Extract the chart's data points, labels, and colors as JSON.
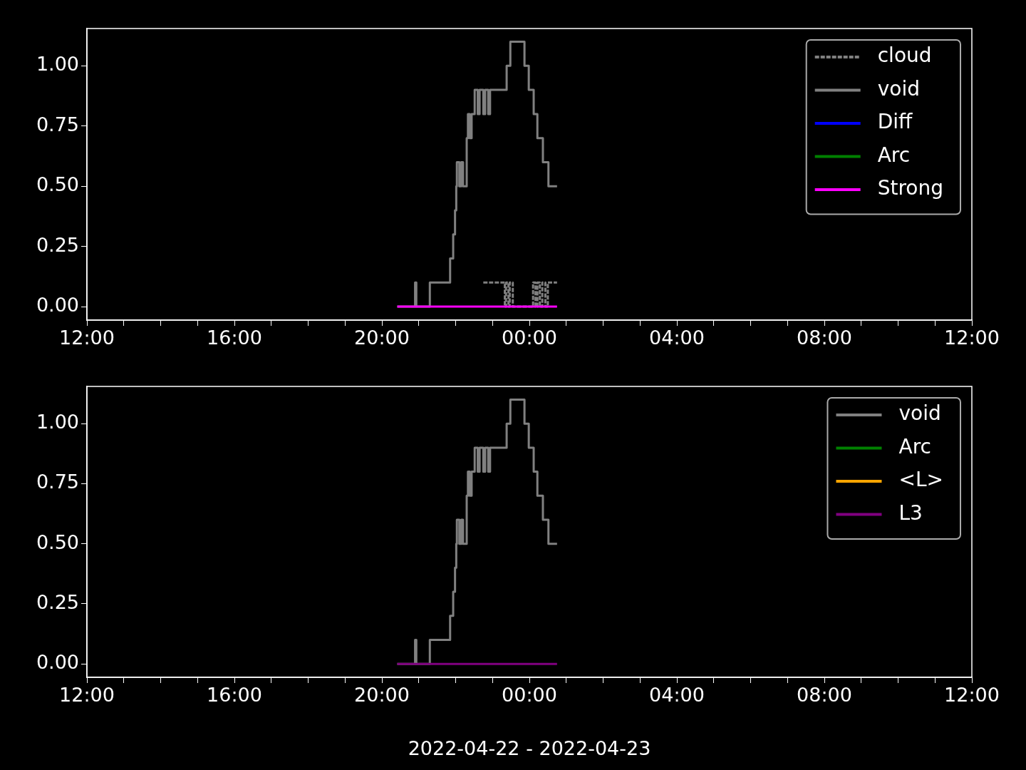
{
  "chart_data": [
    {
      "type": "step",
      "legend": "top right",
      "xlim": [
        "2022-04-22T12:00",
        "2022-04-23T12:00"
      ],
      "xticks": [
        {
          "value": "2022-04-22T12:00",
          "label": "12:00"
        },
        {
          "value": "2022-04-22T13:00",
          "label": null
        },
        {
          "value": "2022-04-22T14:00",
          "label": null
        },
        {
          "value": "2022-04-22T15:00",
          "label": null
        },
        {
          "value": "2022-04-22T16:00",
          "label": "16:00"
        },
        {
          "value": "2022-04-22T17:00",
          "label": null
        },
        {
          "value": "2022-04-22T18:00",
          "label": null
        },
        {
          "value": "2022-04-22T19:00",
          "label": null
        },
        {
          "value": "2022-04-22T20:00",
          "label": "20:00"
        },
        {
          "value": "2022-04-22T21:00",
          "label": null
        },
        {
          "value": "2022-04-22T22:00",
          "label": null
        },
        {
          "value": "2022-04-22T23:00",
          "label": null
        },
        {
          "value": "2022-04-23T00:00",
          "label": "00:00"
        },
        {
          "value": "2022-04-23T01:00",
          "label": null
        },
        {
          "value": "2022-04-23T02:00",
          "label": null
        },
        {
          "value": "2022-04-23T03:00",
          "label": null
        },
        {
          "value": "2022-04-23T04:00",
          "label": "04:00"
        },
        {
          "value": "2022-04-23T05:00",
          "label": null
        },
        {
          "value": "2022-04-23T06:00",
          "label": null
        },
        {
          "value": "2022-04-23T07:00",
          "label": null
        },
        {
          "value": "2022-04-23T08:00",
          "label": "08:00"
        },
        {
          "value": "2022-04-23T09:00",
          "label": null
        },
        {
          "value": "2022-04-23T10:00",
          "label": null
        },
        {
          "value": "2022-04-23T11:00",
          "label": null
        },
        {
          "value": "2022-04-23T12:00",
          "label": "12:00"
        }
      ],
      "ylim": [
        -0.056,
        1.155
      ],
      "yticks": [
        {
          "value": 0,
          "label": "0.00"
        },
        {
          "value": 0.25,
          "label": "0.25"
        },
        {
          "value": 0.5,
          "label": "0.50"
        },
        {
          "value": 0.75,
          "label": "0.75"
        },
        {
          "value": 1,
          "label": "1.00"
        }
      ],
      "series": [
        {
          "name": "cloud",
          "color": "#808080",
          "line_style": "dashed",
          "x": [
            "2022-04-22T22:45",
            "2022-04-22T23:20",
            "2022-04-22T23:22",
            "2022-04-22T23:26",
            "2022-04-22T23:28",
            "2022-04-22T23:33",
            "2022-04-23T00:06",
            "2022-04-23T00:10",
            "2022-04-23T00:13",
            "2022-04-23T00:17",
            "2022-04-23T00:21",
            "2022-04-23T00:26",
            "2022-04-23T00:30",
            "2022-04-23T00:45"
          ],
          "values": [
            0.1,
            0,
            0.1,
            0,
            0.1,
            0,
            0.1,
            0,
            0.1,
            0,
            0.1,
            0,
            0.1,
            0.1
          ]
        },
        {
          "name": "void",
          "color": "#808080",
          "x": [
            "2022-04-22T20:25",
            "2022-04-22T20:54",
            "2022-04-22T20:56",
            "2022-04-22T21:18",
            "2022-04-22T21:51",
            "2022-04-22T21:56",
            "2022-04-22T21:59",
            "2022-04-22T22:01",
            "2022-04-22T22:02",
            "2022-04-22T22:06",
            "2022-04-22T22:09",
            "2022-04-22T22:12",
            "2022-04-22T22:18",
            "2022-04-22T22:20",
            "2022-04-22T22:23",
            "2022-04-22T22:26",
            "2022-04-22T22:31",
            "2022-04-22T22:36",
            "2022-04-22T22:39",
            "2022-04-22T22:45",
            "2022-04-22T22:48",
            "2022-04-22T22:53",
            "2022-04-22T22:56",
            "2022-04-22T23:23",
            "2022-04-22T23:29",
            "2022-04-22T23:52",
            "2022-04-22T23:59",
            "2022-04-23T00:07",
            "2022-04-23T00:13",
            "2022-04-23T00:22",
            "2022-04-23T00:31",
            "2022-04-23T00:45"
          ],
          "values": [
            0,
            0.1,
            0,
            0.1,
            0.2,
            0.3,
            0.4,
            0.5,
            0.6,
            0.5,
            0.6,
            0.5,
            0.7,
            0.8,
            0.7,
            0.8,
            0.9,
            0.8,
            0.9,
            0.8,
            0.9,
            0.8,
            0.9,
            1.0,
            1.1,
            1.0,
            0.9,
            0.8,
            0.7,
            0.6,
            0.5,
            0.5
          ]
        },
        {
          "name": "Diff",
          "color": "#0000ff"
        },
        {
          "name": "Arc",
          "color": "#008000"
        },
        {
          "name": "Strong",
          "color": "#ff00ff",
          "x": [
            "2022-04-22T20:25",
            "2022-04-23T00:45"
          ],
          "values": [
            0,
            0
          ]
        }
      ]
    },
    {
      "type": "step",
      "legend": "top right",
      "xlabel": "2022-04-22 - 2022-04-23",
      "xlim": [
        "2022-04-22T12:00",
        "2022-04-23T12:00"
      ],
      "xticks": [
        {
          "value": "2022-04-22T12:00",
          "label": "12:00"
        },
        {
          "value": "2022-04-22T13:00",
          "label": null
        },
        {
          "value": "2022-04-22T14:00",
          "label": null
        },
        {
          "value": "2022-04-22T15:00",
          "label": null
        },
        {
          "value": "2022-04-22T16:00",
          "label": "16:00"
        },
        {
          "value": "2022-04-22T17:00",
          "label": null
        },
        {
          "value": "2022-04-22T18:00",
          "label": null
        },
        {
          "value": "2022-04-22T19:00",
          "label": null
        },
        {
          "value": "2022-04-22T20:00",
          "label": "20:00"
        },
        {
          "value": "2022-04-22T21:00",
          "label": null
        },
        {
          "value": "2022-04-22T22:00",
          "label": null
        },
        {
          "value": "2022-04-22T23:00",
          "label": null
        },
        {
          "value": "2022-04-23T00:00",
          "label": "00:00"
        },
        {
          "value": "2022-04-23T01:00",
          "label": null
        },
        {
          "value": "2022-04-23T02:00",
          "label": null
        },
        {
          "value": "2022-04-23T03:00",
          "label": null
        },
        {
          "value": "2022-04-23T04:00",
          "label": "04:00"
        },
        {
          "value": "2022-04-23T05:00",
          "label": null
        },
        {
          "value": "2022-04-23T06:00",
          "label": null
        },
        {
          "value": "2022-04-23T07:00",
          "label": null
        },
        {
          "value": "2022-04-23T08:00",
          "label": "08:00"
        },
        {
          "value": "2022-04-23T09:00",
          "label": null
        },
        {
          "value": "2022-04-23T10:00",
          "label": null
        },
        {
          "value": "2022-04-23T11:00",
          "label": null
        },
        {
          "value": "2022-04-23T12:00",
          "label": "12:00"
        }
      ],
      "ylim": [
        -0.056,
        1.155
      ],
      "yticks": [
        {
          "value": 0,
          "label": "0.00"
        },
        {
          "value": 0.25,
          "label": "0.25"
        },
        {
          "value": 0.5,
          "label": "0.50"
        },
        {
          "value": 0.75,
          "label": "0.75"
        },
        {
          "value": 1,
          "label": "1.00"
        }
      ],
      "series": [
        {
          "name": "void",
          "color": "#808080",
          "x": [
            "2022-04-22T20:25",
            "2022-04-22T20:54",
            "2022-04-22T20:56",
            "2022-04-22T21:18",
            "2022-04-22T21:51",
            "2022-04-22T21:56",
            "2022-04-22T21:59",
            "2022-04-22T22:01",
            "2022-04-22T22:02",
            "2022-04-22T22:06",
            "2022-04-22T22:09",
            "2022-04-22T22:12",
            "2022-04-22T22:18",
            "2022-04-22T22:20",
            "2022-04-22T22:23",
            "2022-04-22T22:26",
            "2022-04-22T22:31",
            "2022-04-22T22:36",
            "2022-04-22T22:39",
            "2022-04-22T22:45",
            "2022-04-22T22:48",
            "2022-04-22T22:53",
            "2022-04-22T22:56",
            "2022-04-22T23:23",
            "2022-04-22T23:29",
            "2022-04-22T23:52",
            "2022-04-22T23:59",
            "2022-04-23T00:07",
            "2022-04-23T00:13",
            "2022-04-23T00:22",
            "2022-04-23T00:31",
            "2022-04-23T00:45"
          ],
          "values": [
            0,
            0.1,
            0,
            0.1,
            0.2,
            0.3,
            0.4,
            0.5,
            0.6,
            0.5,
            0.6,
            0.5,
            0.7,
            0.8,
            0.7,
            0.8,
            0.9,
            0.8,
            0.9,
            0.8,
            0.9,
            0.8,
            0.9,
            1.0,
            1.1,
            1.0,
            0.9,
            0.8,
            0.7,
            0.6,
            0.5,
            0.5
          ]
        },
        {
          "name": "Arc",
          "color": "#008000"
        },
        {
          "name": "<L>",
          "color": "#ffa500"
        },
        {
          "name": "L3",
          "color": "#800080",
          "x": [
            "2022-04-22T20:25",
            "2022-04-23T00:45"
          ],
          "values": [
            0,
            0
          ]
        }
      ]
    }
  ]
}
